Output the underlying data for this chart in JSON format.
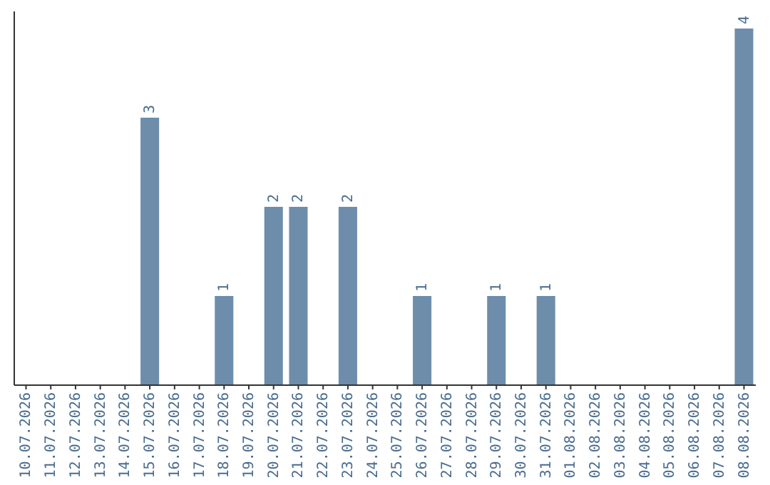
{
  "chart_data": {
    "type": "bar",
    "categories": [
      "10.07.2026",
      "11.07.2026",
      "12.07.2026",
      "13.07.2026",
      "14.07.2026",
      "15.07.2026",
      "16.07.2026",
      "17.07.2026",
      "18.07.2026",
      "19.07.2026",
      "20.07.2026",
      "21.07.2026",
      "22.07.2026",
      "23.07.2026",
      "24.07.2026",
      "25.07.2026",
      "26.07.2026",
      "27.07.2026",
      "28.07.2026",
      "29.07.2026",
      "30.07.2026",
      "31.07.2026",
      "01.08.2026",
      "02.08.2026",
      "03.08.2026",
      "04.08.2026",
      "05.08.2026",
      "06.08.2026",
      "07.08.2026",
      "08.08.2026"
    ],
    "values": [
      0,
      0,
      0,
      0,
      0,
      3,
      0,
      0,
      1,
      0,
      2,
      2,
      0,
      2,
      0,
      0,
      1,
      0,
      0,
      1,
      0,
      1,
      0,
      0,
      0,
      0,
      0,
      0,
      0,
      4
    ],
    "value_labels": [
      null,
      null,
      null,
      null,
      null,
      "3",
      null,
      null,
      "1",
      null,
      "2",
      "2",
      null,
      "2",
      null,
      null,
      "1",
      null,
      null,
      "1",
      null,
      "1",
      null,
      null,
      null,
      null,
      null,
      null,
      null,
      "4"
    ],
    "color": "#6d8dab"
  }
}
